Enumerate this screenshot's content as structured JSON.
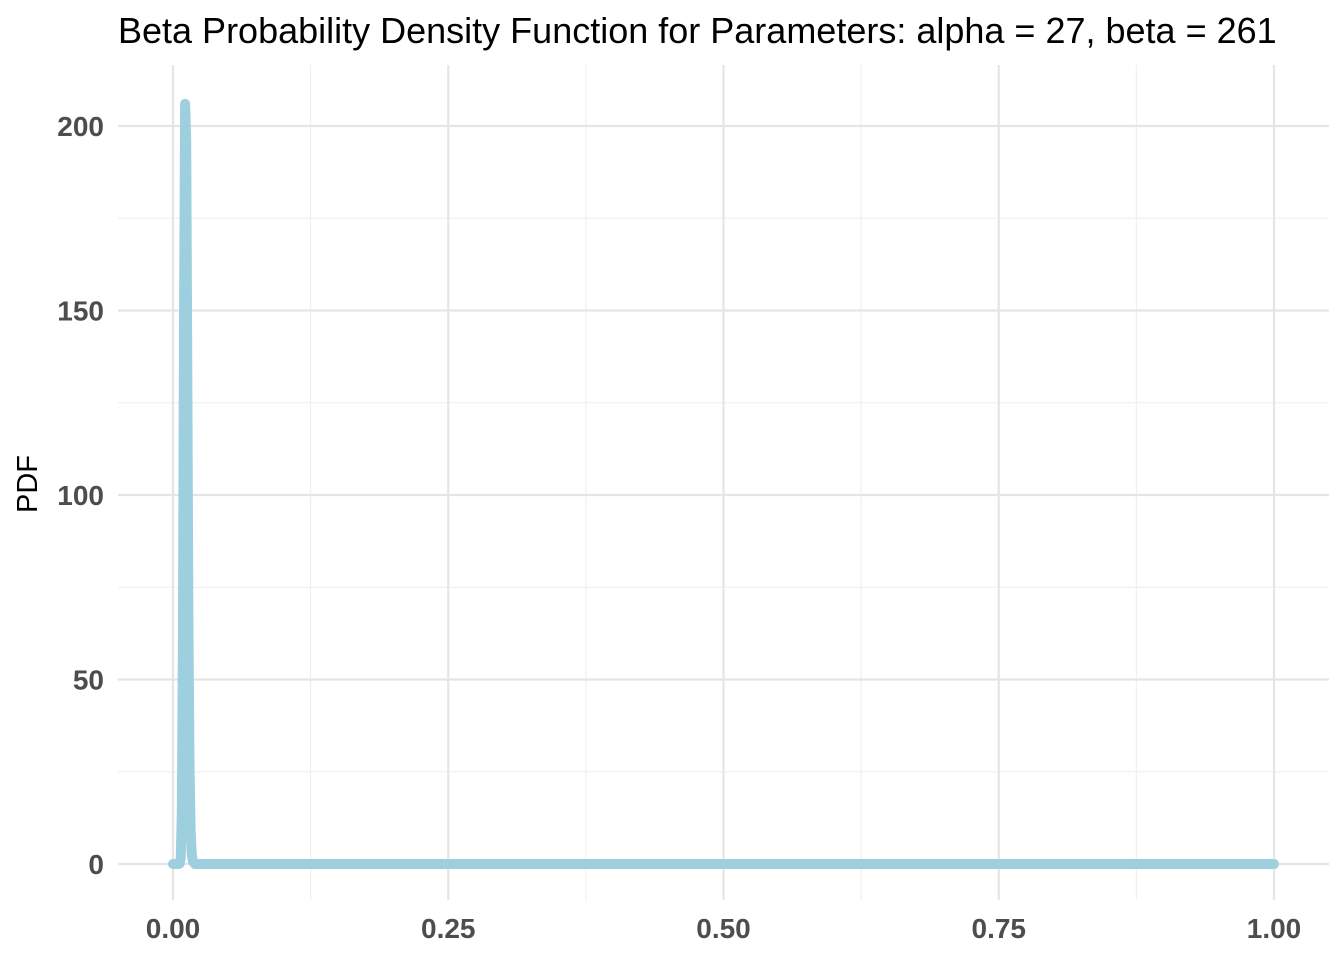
{
  "chart_data": {
    "type": "line",
    "title": "Beta Probability Density Function for Parameters: alpha = 27, beta = 261",
    "xlabel": "",
    "ylabel": "PDF",
    "xlim": [
      0,
      1
    ],
    "ylim": [
      0,
      210
    ],
    "x_ticks": [
      0,
      0.25,
      0.5,
      0.75,
      1
    ],
    "x_tick_labels": [
      "0.00",
      "0.25",
      "0.50",
      "0.75",
      "1.00"
    ],
    "y_ticks": [
      0,
      50,
      100,
      150,
      200
    ],
    "y_tick_labels": [
      "0",
      "50",
      "100",
      "150",
      "200"
    ],
    "grid": true,
    "legend": "none",
    "line_color": "#9ecfdf",
    "series": [
      {
        "x": [
          0,
          0.005,
          0.006,
          0.007,
          0.008,
          0.009,
          0.01,
          0.011,
          0.012,
          0.013,
          0.014,
          0.015,
          0.016,
          0.017,
          0.018,
          0.02,
          0.022,
          0.025,
          0.03,
          0.05,
          0.1,
          0.25,
          0.5,
          0.75,
          1
        ],
        "values": [
          0,
          0,
          0.1,
          1.5,
          14,
          62,
          148,
          206,
          196,
          133,
          66,
          27,
          9,
          2.8,
          0.7,
          0,
          0,
          0,
          0,
          0,
          0,
          0,
          0,
          0,
          0
        ]
      }
    ]
  }
}
